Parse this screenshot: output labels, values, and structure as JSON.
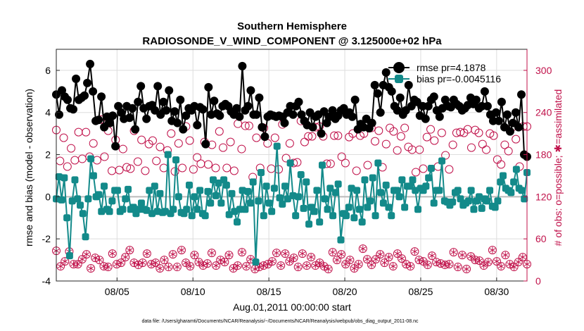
{
  "chart_data": {
    "type": "line",
    "title": "Southern Hemisphere",
    "subtitle": "RADIOSONDE_V_WIND_COMPONENT @ 3.125000e+02 hPa",
    "xlabel": "Aug.01,2011 00:00:00 start",
    "ylabel": "rmse and bias (model - observation)",
    "y2label": "# of obs: o=possible; ✱=assimilated",
    "footnote": "data file: /Users/gharamti/Documents/NCAR/Reanalysis/~/Documents/NCAR/Reanalysis/webpub/obs_diag_output_2011-08.nc",
    "xlim": [
      1,
      32
    ],
    "ylim": [
      -4,
      7
    ],
    "y2lim": [
      0,
      330
    ],
    "x_ticks": [
      5,
      10,
      15,
      20,
      25,
      30
    ],
    "x_tick_labels": [
      "08/05",
      "08/10",
      "08/15",
      "08/20",
      "08/25",
      "08/30"
    ],
    "y_ticks": [
      -4,
      -2,
      0,
      2,
      4,
      6
    ],
    "y2_ticks": [
      0,
      60,
      120,
      180,
      240,
      300
    ],
    "colors": {
      "rmse": "#000000",
      "bias": "#138a8a",
      "obs": "#c0114a",
      "zero": "#bbbbbb"
    },
    "series": [
      {
        "name": "rmse",
        "legend": "rmse pr=4.1878",
        "values": [
          4.85,
          3.9,
          5.05,
          4.75,
          4.6,
          4.2,
          4.15,
          5.6,
          4.6,
          4.7,
          4.8,
          5.4,
          6.3,
          5.0,
          3.6,
          3.65,
          4.75,
          3.3,
          3.8,
          3.5,
          3.85,
          2.4,
          4.3,
          4.0,
          3.7,
          4.3,
          3.75,
          4.2,
          3.2,
          4.5,
          5.25,
          4.2,
          3.7,
          4.3,
          4.35,
          4.1,
          5.25,
          3.9,
          4.5,
          4.1,
          5.05,
          3.6,
          4.05,
          3.5,
          4.6,
          3.2,
          3.85,
          4.2,
          4.1,
          4.3,
          3.4,
          4.25,
          4.15,
          2.5,
          5.2,
          3.9,
          4.55,
          3.95,
          3.85,
          4.3,
          4.4,
          4.3,
          4.05,
          3.9,
          4.2,
          3.8,
          6.2,
          4.1,
          4.3,
          5.05,
          3.9,
          3.9,
          4.7,
          3.3,
          2.85,
          3.8,
          3.9,
          3.85,
          3.8,
          3.85,
          3.8,
          3.5,
          4.0,
          4.3,
          3.9,
          4.3,
          4.5,
          3.9,
          3.6,
          3.4,
          4.0,
          3.3,
          3.8,
          3.9,
          3.0,
          4.05,
          3.5,
          3.8,
          4.1,
          3.7,
          3.85,
          4.1,
          4.2,
          3.9,
          4.0,
          3.8,
          4.6,
          3.2,
          3.45,
          3.3,
          3.7,
          3.25,
          3.5,
          5.3,
          4.9,
          4.0,
          5.3,
          5.9,
          5.2,
          5.0,
          4.3,
          4.1,
          4.7,
          3.9,
          4.1,
          5.3,
          4.3,
          4.6,
          4.5,
          3.85,
          4.3,
          3.7,
          4.3,
          4.6,
          4.75,
          4.1,
          3.8,
          4.2,
          4.6,
          4.3,
          4.25,
          4.6,
          4.4,
          4.3,
          4.1,
          4.2,
          4.35,
          4.7,
          4.4,
          4.6,
          4.2,
          4.3,
          5.0,
          4.3,
          3.9,
          3.6,
          4.0,
          3.6,
          4.5,
          3.3,
          3.9,
          3.1,
          3.5,
          4.0,
          3.3,
          4.85,
          2.0,
          1.9
        ]
      },
      {
        "name": "bias",
        "legend": "bias pr=-0.0045116",
        "values": [
          -0.1,
          0.95,
          -0.15,
          0.9,
          -1.0,
          -2.8,
          -0.2,
          0.8,
          -0.1,
          -0.4,
          -0.8,
          -1.9,
          -0.1,
          1.8,
          1.0,
          0.0,
          0.1,
          -0.7,
          0.5,
          -0.6,
          -0.7,
          -0.2,
          0.3,
          0.3,
          -0.7,
          -0.6,
          -0.1,
          0.35,
          -0.6,
          -0.5,
          -0.8,
          -0.6,
          -0.3,
          -0.6,
          -0.65,
          0.3,
          -0.8,
          0.5,
          -0.7,
          0.15,
          -0.75,
          -0.7,
          2.0,
          -0.8,
          -0.6,
          1.75,
          0.0,
          -0.75,
          -0.8,
          -0.6,
          0.55,
          -0.9,
          0.0,
          -0.6,
          0.3,
          -0.8,
          -0.9,
          0.25,
          -0.3,
          0.8,
          0.05,
          0.65,
          -0.3,
          0.8,
          0.55,
          -0.85,
          0.15,
          -0.7,
          -1.2,
          -0.6,
          0.3,
          -0.6,
          0.25,
          -0.3,
          0.7,
          -3.1,
          -0.2,
          1.15,
          -0.9,
          0.5,
          -0.3,
          -0.7,
          0.4,
          2.4,
          -0.05,
          -0.35,
          0.5,
          -0.1,
          1.6,
          0.05,
          -0.9,
          0.0,
          1.05,
          -0.55,
          0.7,
          -1.3,
          -0.5,
          -0.7,
          0.3,
          -1.2,
          1.5,
          -0.1,
          -0.6,
          0.4,
          -0.9,
          0.2,
          0.6,
          -2.05,
          -0.8,
          -0.9,
          -0.5,
          0.4,
          -1.0,
          0.3,
          -0.6,
          -1.2,
          0.8,
          -0.5,
          -0.2,
          0.9,
          -0.9,
          1.6,
          0.2,
          -0.3,
          0.55,
          -0.5,
          -0.9,
          0.3,
          0.3,
          0.0,
          0.8,
          -0.5,
          0.5,
          0.5,
          0.8,
          0.3,
          -0.6,
          0.4,
          0.3,
          0.5,
          0.9,
          1.35,
          -0.3,
          0.3,
          0.3,
          1.7,
          -0.2,
          -0.25,
          -0.4,
          -0.25,
          0.2,
          0.3,
          -0.1,
          -0.4,
          -0.3,
          -0.2,
          0.3,
          -0.6,
          -0.2,
          0.0,
          -0.55,
          -0.1,
          -0.2,
          0.3,
          -0.45,
          -0.5,
          -0.2,
          0.7,
          1.0,
          0.4,
          0.3,
          0.2,
          0.7,
          1.3,
          0.4,
          0.3,
          -0.1,
          1.15
        ]
      }
    ],
    "obs_possible": [
      215,
      171,
      204,
      163,
      189,
      172,
      212,
      174,
      212,
      177,
      196,
      172,
      230,
      177,
      214,
      157,
      201,
      158,
      188,
      162,
      160,
      214,
      170,
      201,
      157,
      195,
      200,
      171,
      191,
      161,
      186,
      210,
      156,
      196,
      161,
      220,
      200,
      159,
      176,
      167,
      198,
      166,
      194,
      161,
      213,
      190,
      161,
      198,
      157,
      224,
      188,
      221,
      221,
      148,
      204,
      161,
      218,
      196,
      160,
      204,
      159,
      223,
      175,
      196,
      168,
      169,
      228,
      198,
      206,
      206,
      219,
      220,
      206,
      167,
      167,
      207,
      207,
      177,
      168,
      205,
      210,
      157,
      207,
      210,
      165,
      218,
      199,
      214,
      162,
      195,
      218,
      213,
      186,
      206,
      218,
      191,
      187,
      155,
      187,
      160,
      205,
      216,
      200,
      163,
      211,
      179,
      159,
      194,
      211,
      212,
      211,
      216,
      190,
      215,
      211,
      195,
      187,
      210,
      207,
      173,
      166,
      194,
      185,
      219,
      202,
      163,
      220,
      220
    ],
    "obs_assimilated": [
      43,
      21,
      28,
      42,
      24,
      24,
      31,
      38,
      18,
      33,
      30,
      21,
      20,
      39,
      24,
      26,
      34,
      44,
      26,
      23,
      26,
      39,
      24,
      26,
      18,
      30,
      20,
      38,
      20,
      44,
      26,
      21,
      37,
      27,
      22,
      25,
      40,
      22,
      30,
      27,
      37,
      18,
      22,
      41,
      21,
      31,
      17,
      20,
      22,
      24,
      28,
      40,
      22,
      39,
      28,
      33,
      20,
      39,
      22,
      34,
      22,
      26,
      21,
      17,
      41,
      30,
      38,
      24,
      30,
      18,
      24,
      46,
      31,
      23,
      31,
      38,
      26,
      34,
      21,
      39,
      32,
      24,
      21,
      42,
      30,
      28,
      23,
      36,
      27,
      25,
      23,
      24,
      41,
      20,
      37,
      17,
      35,
      30,
      29,
      22,
      27,
      44,
      28,
      21,
      37,
      24,
      20,
      27,
      34,
      24
    ]
  }
}
